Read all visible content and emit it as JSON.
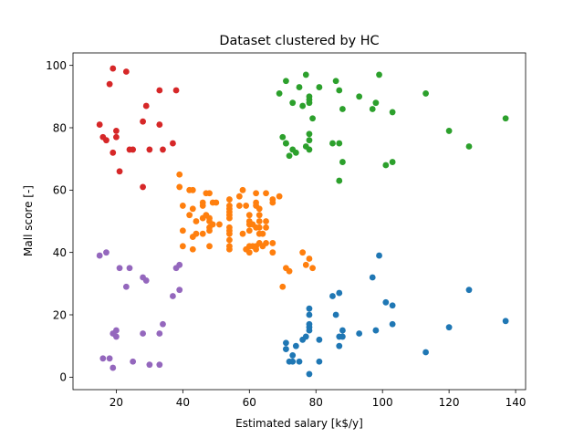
{
  "chart_data": {
    "type": "scatter",
    "title": "Dataset clustered by HC",
    "xlabel": "Estimated salary [k$/y]",
    "ylabel": "Mall score [-]",
    "xlim": [
      7,
      143
    ],
    "ylim": [
      -4,
      104
    ],
    "xticks": [
      20,
      40,
      60,
      80,
      100,
      120,
      140
    ],
    "yticks": [
      0,
      20,
      40,
      60,
      80,
      100
    ],
    "grid": false,
    "legend": "none",
    "series": [
      {
        "color": "#d62728",
        "points": [
          [
            15,
            81
          ],
          [
            16,
            77
          ],
          [
            17,
            76
          ],
          [
            18,
            94
          ],
          [
            19,
            99
          ],
          [
            19,
            72
          ],
          [
            20,
            77
          ],
          [
            20,
            79
          ],
          [
            21,
            66
          ],
          [
            23,
            98
          ],
          [
            24,
            73
          ],
          [
            25,
            73
          ],
          [
            28,
            82
          ],
          [
            28,
            61
          ],
          [
            29,
            87
          ],
          [
            30,
            73
          ],
          [
            33,
            92
          ],
          [
            33,
            81
          ],
          [
            34,
            73
          ],
          [
            37,
            75
          ],
          [
            38,
            92
          ]
        ]
      },
      {
        "color": "#9467bd",
        "points": [
          [
            15,
            39
          ],
          [
            16,
            6
          ],
          [
            17,
            40
          ],
          [
            18,
            6
          ],
          [
            19,
            3
          ],
          [
            19,
            14
          ],
          [
            20,
            15
          ],
          [
            20,
            13
          ],
          [
            21,
            35
          ],
          [
            23,
            29
          ],
          [
            24,
            35
          ],
          [
            25,
            5
          ],
          [
            28,
            14
          ],
          [
            28,
            32
          ],
          [
            29,
            31
          ],
          [
            30,
            4
          ],
          [
            33,
            4
          ],
          [
            33,
            14
          ],
          [
            34,
            17
          ],
          [
            37,
            26
          ],
          [
            38,
            35
          ],
          [
            39,
            36
          ],
          [
            39,
            28
          ]
        ]
      },
      {
        "color": "#ff7f0e",
        "points": [
          [
            39,
            65
          ],
          [
            39,
            61
          ],
          [
            40,
            55
          ],
          [
            40,
            47
          ],
          [
            40,
            42
          ],
          [
            42,
            52
          ],
          [
            42,
            60
          ],
          [
            43,
            60
          ],
          [
            43,
            54
          ],
          [
            43,
            45
          ],
          [
            43,
            41
          ],
          [
            44,
            50
          ],
          [
            44,
            46
          ],
          [
            46,
            51
          ],
          [
            46,
            46
          ],
          [
            46,
            56
          ],
          [
            46,
            55
          ],
          [
            47,
            52
          ],
          [
            47,
            59
          ],
          [
            48,
            51
          ],
          [
            48,
            59
          ],
          [
            48,
            50
          ],
          [
            48,
            48
          ],
          [
            48,
            47
          ],
          [
            48,
            42
          ],
          [
            49,
            49
          ],
          [
            49,
            56
          ],
          [
            50,
            56
          ],
          [
            51,
            49
          ],
          [
            54,
            47
          ],
          [
            54,
            54
          ],
          [
            54,
            53
          ],
          [
            54,
            48
          ],
          [
            54,
            52
          ],
          [
            54,
            42
          ],
          [
            54,
            51
          ],
          [
            54,
            55
          ],
          [
            54,
            41
          ],
          [
            54,
            44
          ],
          [
            54,
            57
          ],
          [
            54,
            46
          ],
          [
            57,
            58
          ],
          [
            57,
            55
          ],
          [
            58,
            60
          ],
          [
            58,
            46
          ],
          [
            59,
            55
          ],
          [
            59,
            41
          ],
          [
            60,
            49
          ],
          [
            60,
            40
          ],
          [
            60,
            42
          ],
          [
            60,
            52
          ],
          [
            60,
            47
          ],
          [
            60,
            50
          ],
          [
            61,
            42
          ],
          [
            61,
            49
          ],
          [
            62,
            41
          ],
          [
            62,
            48
          ],
          [
            62,
            59
          ],
          [
            62,
            55
          ],
          [
            62,
            56
          ],
          [
            62,
            42
          ],
          [
            63,
            50
          ],
          [
            63,
            46
          ],
          [
            63,
            43
          ],
          [
            63,
            48
          ],
          [
            63,
            52
          ],
          [
            63,
            54
          ],
          [
            64,
            42
          ],
          [
            64,
            46
          ],
          [
            65,
            48
          ],
          [
            65,
            50
          ],
          [
            65,
            43
          ],
          [
            65,
            59
          ],
          [
            67,
            43
          ],
          [
            67,
            57
          ],
          [
            67,
            56
          ],
          [
            67,
            40
          ],
          [
            69,
            58
          ],
          [
            70,
            29
          ],
          [
            71,
            35
          ],
          [
            72,
            34
          ],
          [
            76,
            40
          ],
          [
            77,
            36
          ],
          [
            78,
            38
          ],
          [
            79,
            35
          ]
        ]
      },
      {
        "color": "#1f77b4",
        "points": [
          [
            71,
            11
          ],
          [
            71,
            9
          ],
          [
            72,
            5
          ],
          [
            73,
            7
          ],
          [
            73,
            5
          ],
          [
            74,
            10
          ],
          [
            75,
            5
          ],
          [
            76,
            12
          ],
          [
            77,
            13
          ],
          [
            78,
            15
          ],
          [
            78,
            1
          ],
          [
            78,
            22
          ],
          [
            78,
            20
          ],
          [
            78,
            16
          ],
          [
            78,
            17
          ],
          [
            81,
            5
          ],
          [
            81,
            12
          ],
          [
            85,
            26
          ],
          [
            86,
            20
          ],
          [
            87,
            27
          ],
          [
            87,
            13
          ],
          [
            87,
            10
          ],
          [
            88,
            13
          ],
          [
            88,
            15
          ],
          [
            93,
            14
          ],
          [
            97,
            32
          ],
          [
            98,
            15
          ],
          [
            99,
            39
          ],
          [
            101,
            24
          ],
          [
            103,
            17
          ],
          [
            103,
            23
          ],
          [
            113,
            8
          ],
          [
            120,
            16
          ],
          [
            126,
            28
          ],
          [
            137,
            18
          ]
        ]
      },
      {
        "color": "#2ca02c",
        "points": [
          [
            69,
            91
          ],
          [
            70,
            77
          ],
          [
            71,
            95
          ],
          [
            71,
            75
          ],
          [
            71,
            75
          ],
          [
            72,
            71
          ],
          [
            73,
            88
          ],
          [
            73,
            73
          ],
          [
            74,
            72
          ],
          [
            75,
            93
          ],
          [
            76,
            87
          ],
          [
            77,
            97
          ],
          [
            77,
            74
          ],
          [
            78,
            90
          ],
          [
            78,
            88
          ],
          [
            78,
            76
          ],
          [
            78,
            89
          ],
          [
            78,
            78
          ],
          [
            78,
            73
          ],
          [
            79,
            83
          ],
          [
            81,
            93
          ],
          [
            85,
            75
          ],
          [
            86,
            95
          ],
          [
            87,
            63
          ],
          [
            87,
            75
          ],
          [
            87,
            92
          ],
          [
            88,
            86
          ],
          [
            88,
            69
          ],
          [
            93,
            90
          ],
          [
            97,
            86
          ],
          [
            98,
            88
          ],
          [
            99,
            97
          ],
          [
            101,
            68
          ],
          [
            103,
            85
          ],
          [
            103,
            69
          ],
          [
            113,
            91
          ],
          [
            120,
            79
          ],
          [
            126,
            74
          ],
          [
            137,
            83
          ]
        ]
      }
    ]
  }
}
